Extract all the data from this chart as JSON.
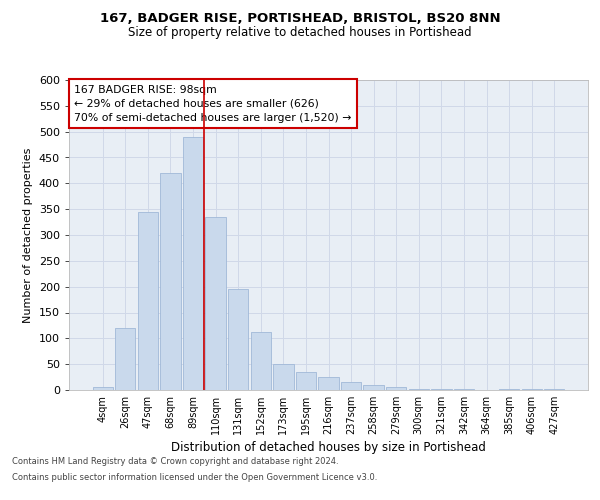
{
  "title1": "167, BADGER RISE, PORTISHEAD, BRISTOL, BS20 8NN",
  "title2": "Size of property relative to detached houses in Portishead",
  "xlabel": "Distribution of detached houses by size in Portishead",
  "ylabel": "Number of detached properties",
  "categories": [
    "4sqm",
    "26sqm",
    "47sqm",
    "68sqm",
    "89sqm",
    "110sqm",
    "131sqm",
    "152sqm",
    "173sqm",
    "195sqm",
    "216sqm",
    "237sqm",
    "258sqm",
    "279sqm",
    "300sqm",
    "321sqm",
    "342sqm",
    "364sqm",
    "385sqm",
    "406sqm",
    "427sqm"
  ],
  "values": [
    5,
    120,
    345,
    420,
    490,
    335,
    195,
    113,
    50,
    35,
    26,
    16,
    9,
    6,
    2,
    1,
    1,
    0,
    2,
    1,
    1
  ],
  "bar_color": "#c9d9ec",
  "bar_edge_color": "#a0b8d8",
  "grid_color": "#d0d8e8",
  "background_color": "#e8eef5",
  "vline_index": 4.5,
  "vline_color": "#cc0000",
  "annotation_text": "167 BADGER RISE: 98sqm\n← 29% of detached houses are smaller (626)\n70% of semi-detached houses are larger (1,520) →",
  "annotation_box_color": "#ffffff",
  "annotation_box_edge": "#cc0000",
  "ylim": [
    0,
    600
  ],
  "yticks": [
    0,
    50,
    100,
    150,
    200,
    250,
    300,
    350,
    400,
    450,
    500,
    550,
    600
  ],
  "footer1": "Contains HM Land Registry data © Crown copyright and database right 2024.",
  "footer2": "Contains public sector information licensed under the Open Government Licence v3.0.",
  "fig_width": 6.0,
  "fig_height": 5.0,
  "title1_fontsize": 9.5,
  "title2_fontsize": 8.5,
  "ylabel_fontsize": 8.0,
  "xlabel_fontsize": 8.5,
  "ytick_fontsize": 8.0,
  "xtick_fontsize": 7.0,
  "footer_fontsize": 6.0,
  "annotation_fontsize": 7.8
}
